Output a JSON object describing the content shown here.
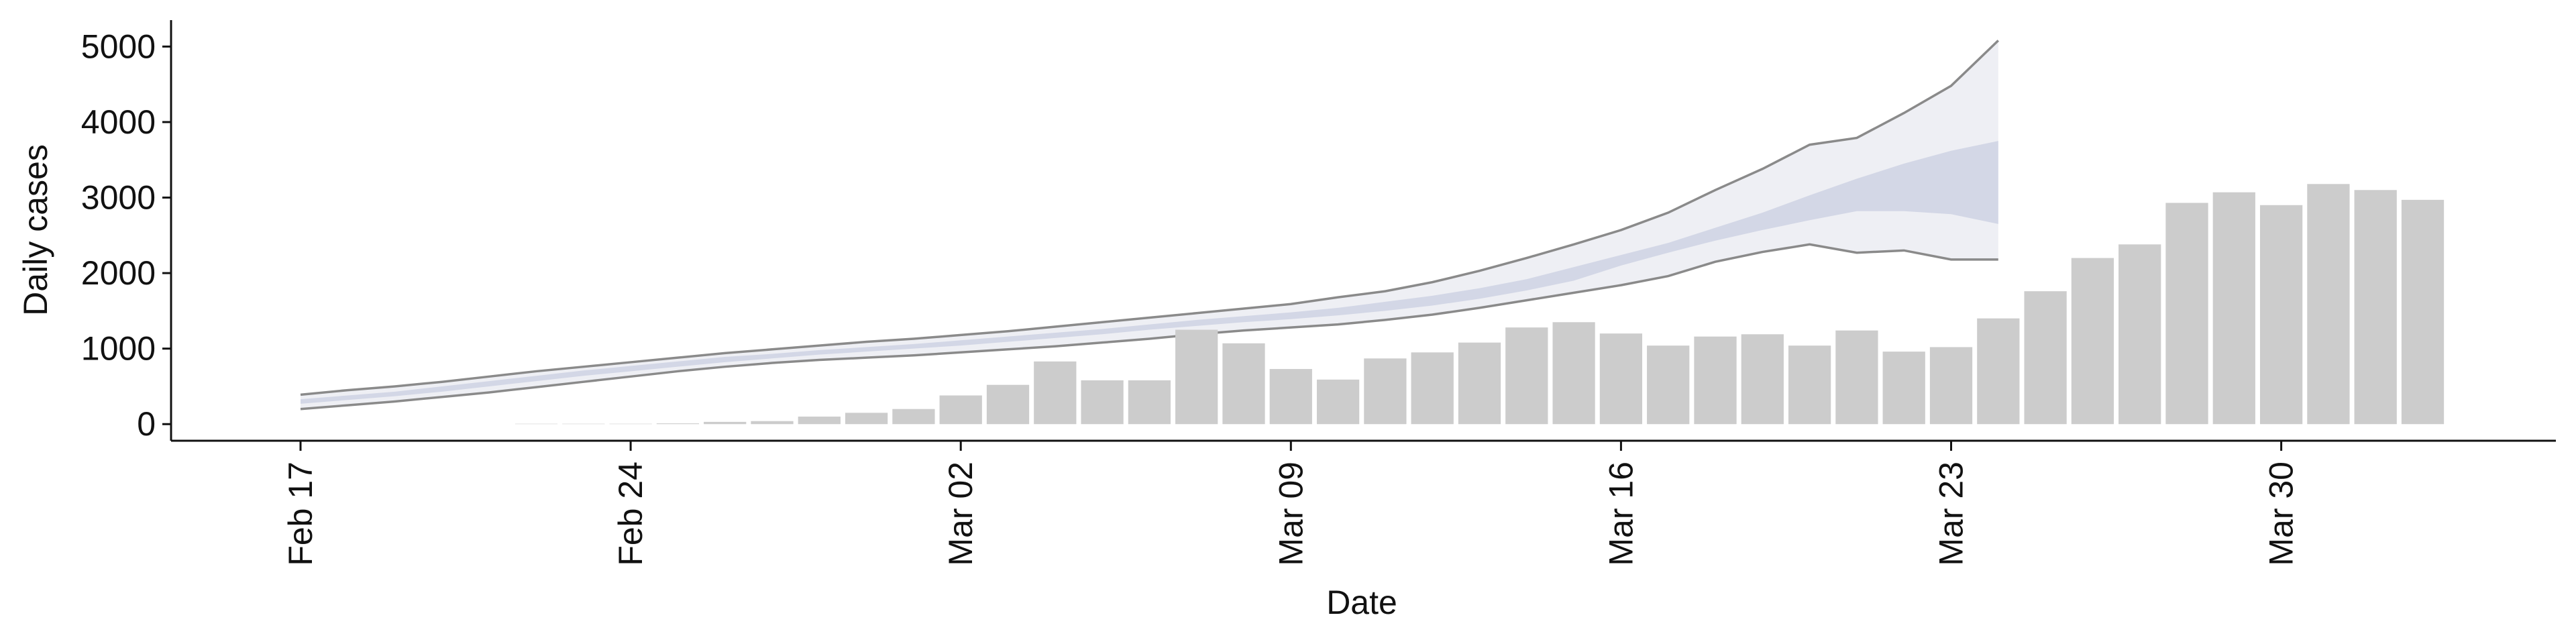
{
  "chart_data": {
    "type": "bar-band",
    "x_label": "Date",
    "y_label": "Daily cases",
    "categories": [
      "Feb 17",
      null,
      null,
      null,
      null,
      null,
      null,
      "Feb 24",
      null,
      null,
      null,
      null,
      null,
      null,
      "Mar 02",
      null,
      null,
      null,
      null,
      null,
      null,
      "Mar 09",
      null,
      null,
      null,
      null,
      null,
      null,
      "Mar 16",
      null,
      null,
      null,
      null,
      null,
      null,
      "Mar 23",
      null,
      null,
      null,
      null,
      null,
      null,
      "Mar 30",
      null,
      null,
      null
    ],
    "values": [
      null,
      null,
      null,
      null,
      null,
      5,
      5,
      5,
      10,
      30,
      40,
      100,
      150,
      200,
      380,
      520,
      830,
      580,
      580,
      1250,
      1070,
      730,
      590,
      870,
      950,
      1080,
      1280,
      1350,
      1200,
      1040,
      1160,
      1190,
      1040,
      1240,
      960,
      1020,
      1400,
      1760,
      2200,
      2380,
      2930,
      3070,
      2900,
      3180,
      3100,
      2970
    ],
    "color": "#cccccc",
    "bands": [
      {
        "color": "#eeeff4",
        "line_color": "#8a8a8a",
        "lower": [
          200,
          250,
          300,
          360,
          420,
          490,
          560,
          630,
          700,
          760,
          810,
          850,
          880,
          910,
          950,
          990,
          1030,
          1080,
          1130,
          1190,
          1240,
          1280,
          1320,
          1380,
          1450,
          1540,
          1640,
          1740,
          1840,
          1960,
          2150,
          2280,
          2380,
          2270,
          2300,
          2180,
          2180,
          null,
          null,
          null,
          null,
          null,
          null,
          null,
          null,
          null
        ],
        "upper": [
          390,
          450,
          500,
          560,
          630,
          700,
          760,
          820,
          880,
          940,
          990,
          1040,
          1090,
          1130,
          1180,
          1230,
          1290,
          1350,
          1410,
          1470,
          1530,
          1590,
          1680,
          1760,
          1880,
          2030,
          2200,
          2380,
          2570,
          2800,
          3100,
          3380,
          3700,
          3790,
          4120,
          4480,
          5080,
          null,
          null,
          null,
          null,
          null,
          null,
          null,
          null,
          null
        ]
      },
      {
        "color": "#d3d7e6",
        "lower": [
          270,
          320,
          370,
          430,
          500,
          570,
          640,
          700,
          760,
          820,
          870,
          920,
          960,
          1000,
          1040,
          1090,
          1140,
          1190,
          1250,
          1300,
          1350,
          1390,
          1440,
          1500,
          1570,
          1660,
          1770,
          1900,
          2100,
          2270,
          2430,
          2570,
          2700,
          2820,
          2820,
          2780,
          2650,
          null,
          null,
          null,
          null,
          null,
          null,
          null,
          null,
          null
        ],
        "upper": [
          330,
          380,
          430,
          500,
          570,
          640,
          710,
          770,
          830,
          890,
          930,
          980,
          1020,
          1060,
          1110,
          1160,
          1210,
          1260,
          1320,
          1380,
          1430,
          1480,
          1540,
          1620,
          1700,
          1800,
          1920,
          2080,
          2240,
          2400,
          2600,
          2800,
          3030,
          3250,
          3450,
          3620,
          3750,
          null,
          null,
          null,
          null,
          null,
          null,
          null,
          null,
          null
        ]
      }
    ],
    "ylim": [
      -220,
      5350
    ],
    "yticks": [
      0,
      1000,
      2000,
      3000,
      4000,
      5000
    ],
    "grid": false
  }
}
